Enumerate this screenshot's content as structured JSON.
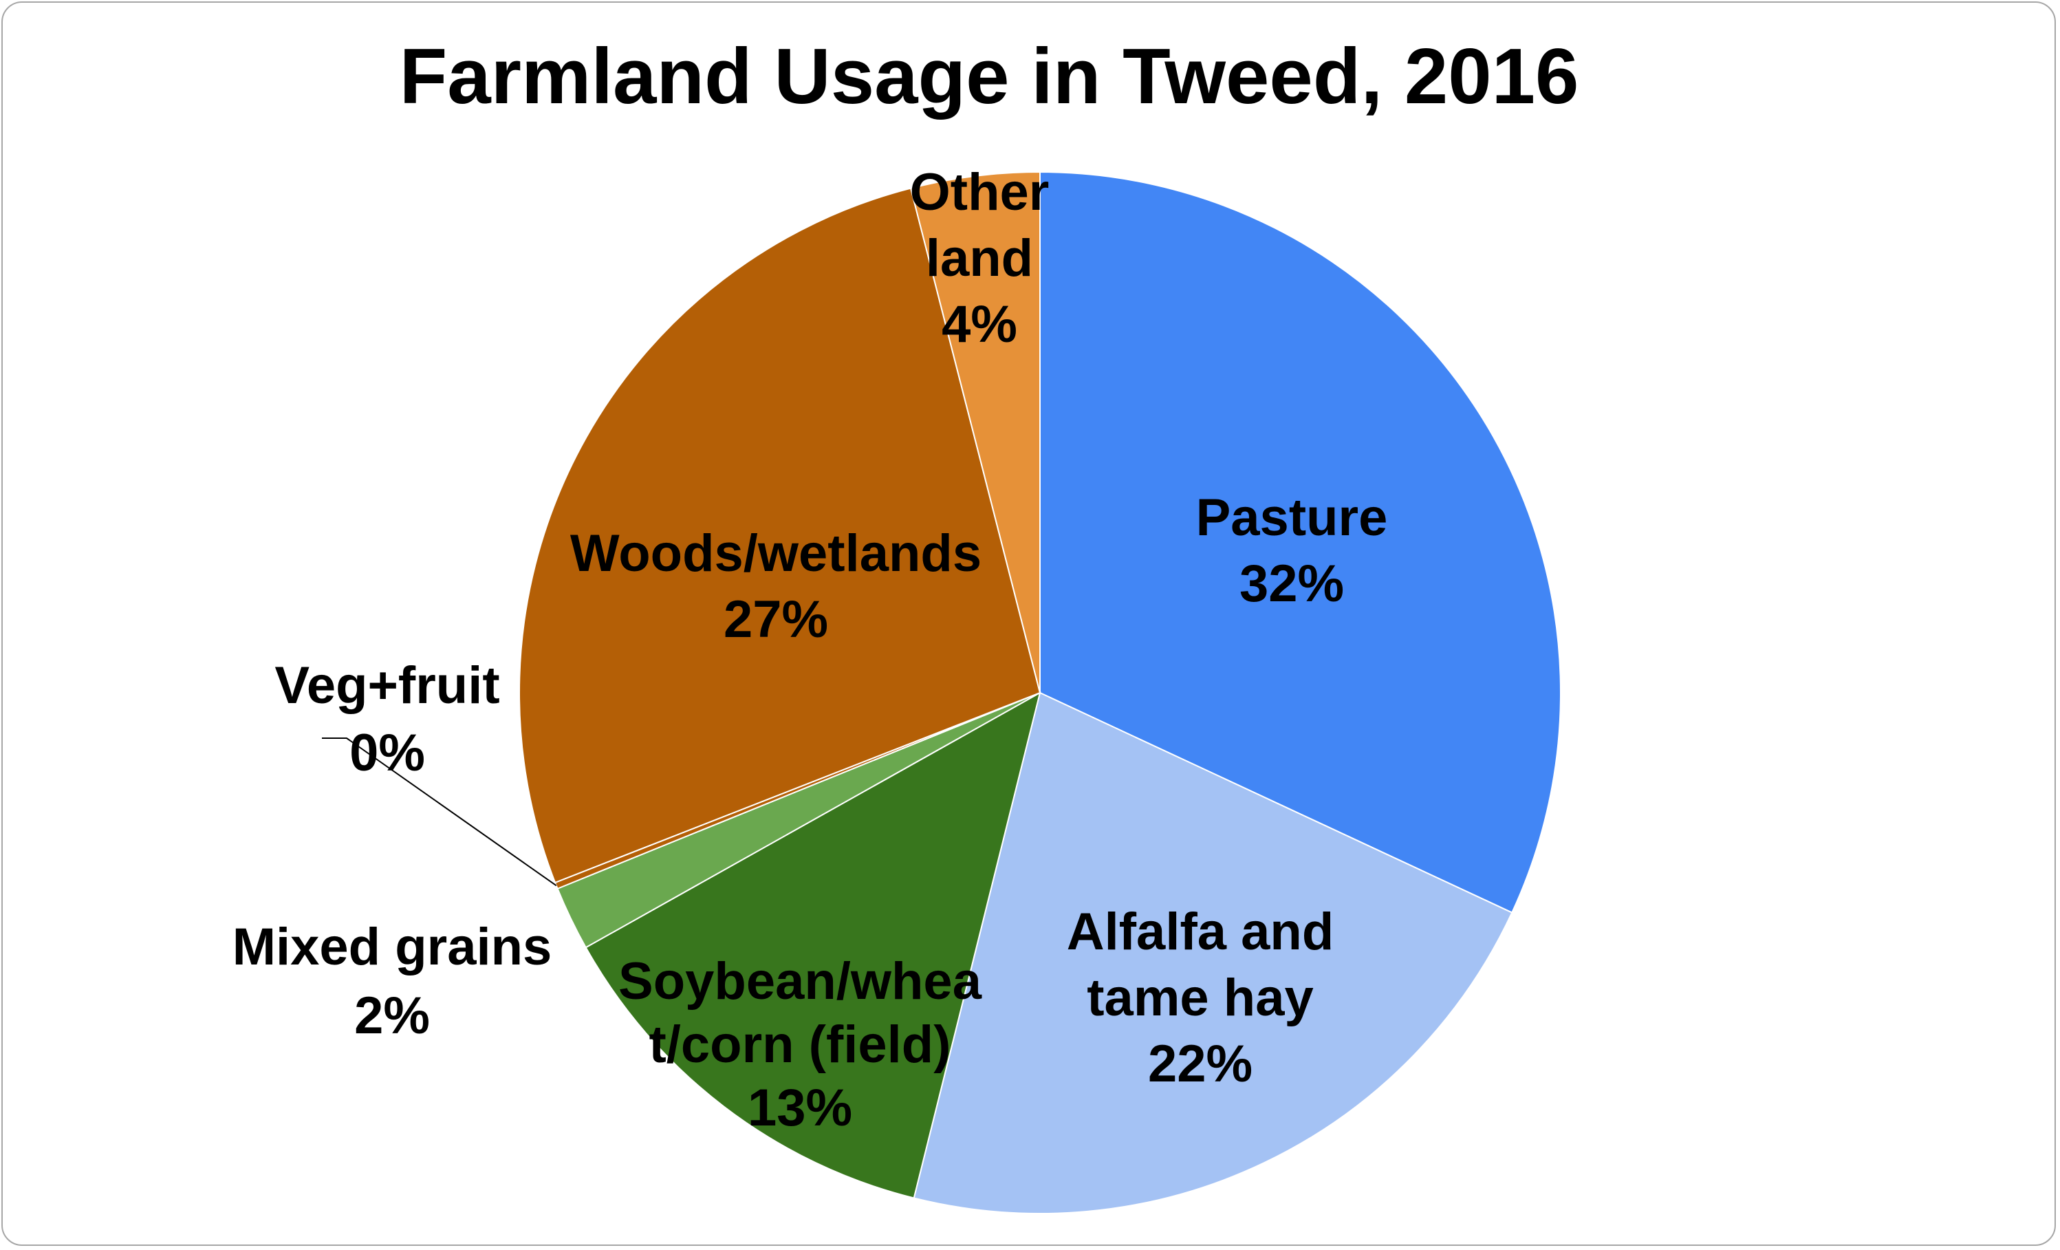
{
  "chart_data": {
    "type": "pie",
    "title": "Farmland Usage in Tweed, 2016",
    "slices": [
      {
        "name": "Pasture",
        "percent_label": "32%",
        "value": 32,
        "color": "#4286f5",
        "label_lines": [
          "Pasture",
          "32%"
        ]
      },
      {
        "name": "Alfalfa and tame hay",
        "percent_label": "22%",
        "value": 22,
        "color": "#a4c2f4",
        "label_lines": [
          "Alfalfa and",
          "tame hay",
          "22%"
        ]
      },
      {
        "name": "Soybean/wheat/corn (field)",
        "percent_label": "13%",
        "value": 13,
        "color": "#38761d",
        "label_lines": [
          "Soybean/whea",
          "t/corn (field)",
          "13%"
        ]
      },
      {
        "name": "Mixed grains",
        "percent_label": "2%",
        "value": 2,
        "color": "#6aa84f",
        "label_lines": [
          "Mixed grains",
          "2%"
        ]
      },
      {
        "name": "Veg+fruit",
        "percent_label": "0%",
        "value": 0.2,
        "color": "#b45f06",
        "label_lines": [
          "Veg+fruit",
          "0%"
        ]
      },
      {
        "name": "Woods/wetlands",
        "percent_label": "27%",
        "value": 27,
        "color": "#b45f06",
        "label_lines": [
          "Woods/wetlands",
          "27%"
        ]
      },
      {
        "name": "Other land",
        "percent_label": "4%",
        "value": 4,
        "color": "#e69138",
        "label_lines": [
          "Other",
          "land",
          "4%"
        ]
      }
    ],
    "legend": "none",
    "start_angle": "12 o'clock, clockwise"
  }
}
